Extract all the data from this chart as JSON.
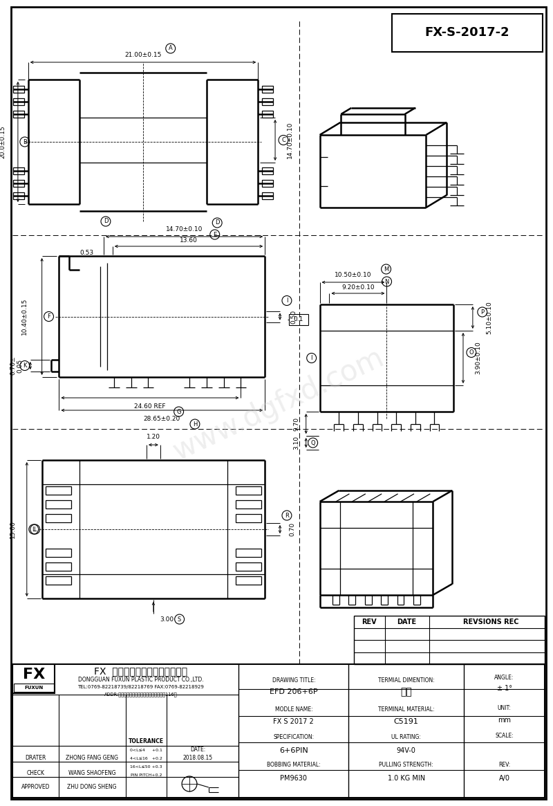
{
  "title": "FX-S-2017-2",
  "bg_color": "#ffffff",
  "line_color": "#000000",
  "company_cn": "东莓市福讯塑胶制品有限公司",
  "company_en": "DONGGUAN FUXUN PLASTIC PRODUCT CO.,LTD.",
  "tel": "TEL:0769-82218739/82218769 FAX:0769-82218929",
  "addr": "ADDR:广东省东莓市横沥镇北环路三江工业区116樋",
  "drawing_title": "EFD 206+6P",
  "model_name": "FX S 2017 2",
  "spec": "6+6PIN",
  "bobbin": "PM9630",
  "terminal_dim": "端子",
  "terminal_mat": "C5191",
  "ul_rating": "94V-0",
  "pulling_strength": "1.0 KG MIN",
  "angle": "± 1°",
  "unit": "mm",
  "scale": "",
  "rev": "A/0",
  "date": "2018.08.15",
  "drater": "ZHONG FANG GENG",
  "check": "WANG SHAOFENG",
  "approved": "ZHU DONG SHENG",
  "tolerance_rows": [
    "0<L≤4     +0.1",
    "4<L≤16   +0.2",
    "16<L≤50 +0.3",
    "PIN PITCH+0.2"
  ]
}
